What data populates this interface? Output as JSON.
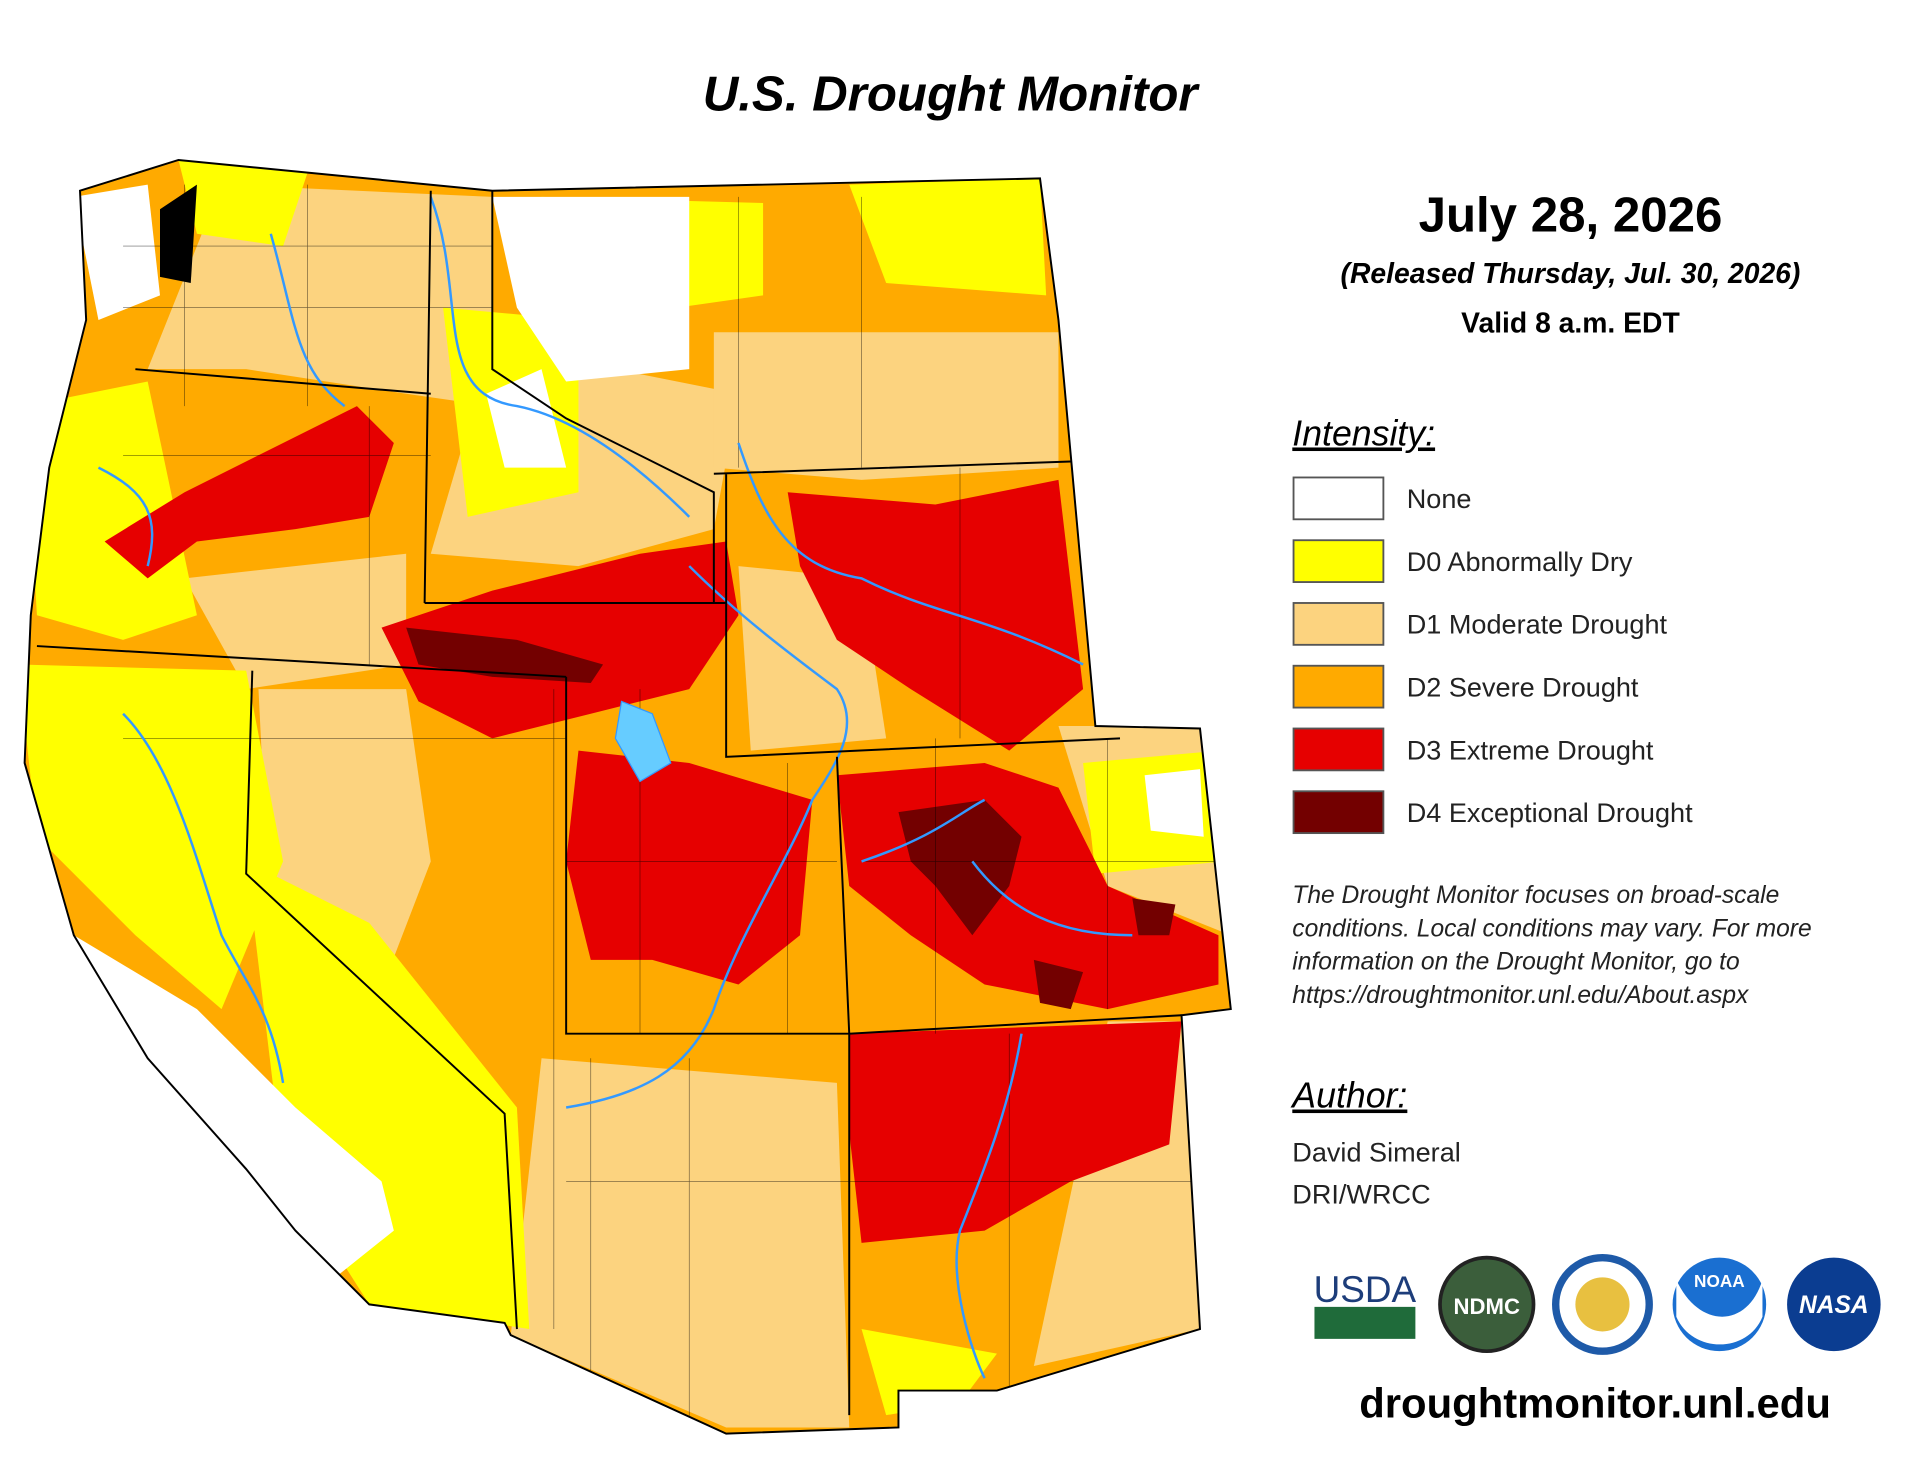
{
  "header": {
    "title": "U.S. Drought Monitor",
    "date": "July 28, 2026",
    "released": "(Released Thursday, Jul. 30, 2026)",
    "valid": "Valid 8 a.m. EDT"
  },
  "legend": {
    "title": "Intensity:",
    "items": [
      {
        "label": "None",
        "color": "#ffffff"
      },
      {
        "label": "D0 Abnormally Dry",
        "color": "#ffff00"
      },
      {
        "label": "D1 Moderate Drought",
        "color": "#fcd37f"
      },
      {
        "label": "D2 Severe Drought",
        "color": "#ffaa00"
      },
      {
        "label": "D3 Extreme Drought",
        "color": "#e60000"
      },
      {
        "label": "D4 Exceptional Drought",
        "color": "#730000"
      }
    ]
  },
  "note": [
    "The Drought Monitor focuses on broad-scale",
    "conditions. Local conditions may vary. For more",
    "information on the Drought Monitor, go to",
    "https://droughtmonitor.unl.edu/About.aspx"
  ],
  "author": {
    "title": "Author:",
    "name": "David Simeral",
    "org": "DRI/WRCC"
  },
  "logos": [
    "USDA",
    "NDMC",
    "NOAA",
    "NASA"
  ],
  "footer": {
    "url": "droughtmonitor.unl.edu"
  }
}
